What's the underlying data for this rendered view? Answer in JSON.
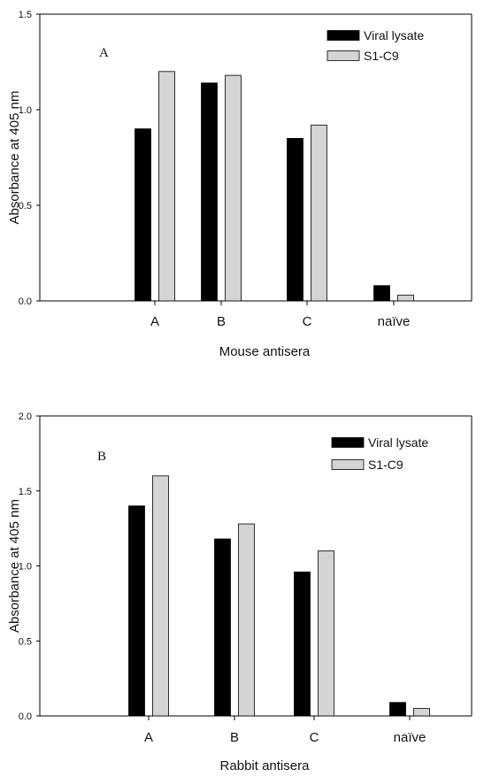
{
  "chart_data": [
    {
      "type": "bar",
      "panel_label": "A",
      "categories": [
        "A",
        "B",
        "C",
        "naïve"
      ],
      "series": [
        {
          "name": "Viral lysate",
          "values": [
            0.9,
            1.14,
            0.85,
            0.08
          ],
          "color": "#000000"
        },
        {
          "name": "S1-C9",
          "values": [
            1.2,
            1.18,
            0.92,
            0.03
          ],
          "color": "#d4d4d4"
        }
      ],
      "xlabel": "Mouse antisera",
      "ylabel": "Absorbance at 405 nm",
      "ylim": [
        0,
        1.5
      ],
      "yticks": [
        "0.0",
        "0.5",
        "1.0",
        "1.5"
      ],
      "grid": false,
      "legend_position": "top-right"
    },
    {
      "type": "bar",
      "panel_label": "B",
      "categories": [
        "A",
        "B",
        "C",
        "naïve"
      ],
      "series": [
        {
          "name": "Viral lysate",
          "values": [
            1.4,
            1.18,
            0.96,
            0.09
          ],
          "color": "#000000"
        },
        {
          "name": "S1-C9",
          "values": [
            1.6,
            1.28,
            1.1,
            0.05
          ],
          "color": "#d4d4d4"
        }
      ],
      "xlabel": "Rabbit antisera",
      "ylabel": "Absorbance at 405 nm",
      "ylim": [
        0,
        2.0
      ],
      "yticks": [
        "0.0",
        "0.5",
        "1.0",
        "1.5",
        "2.0"
      ],
      "grid": false,
      "legend_position": "top-right"
    }
  ]
}
